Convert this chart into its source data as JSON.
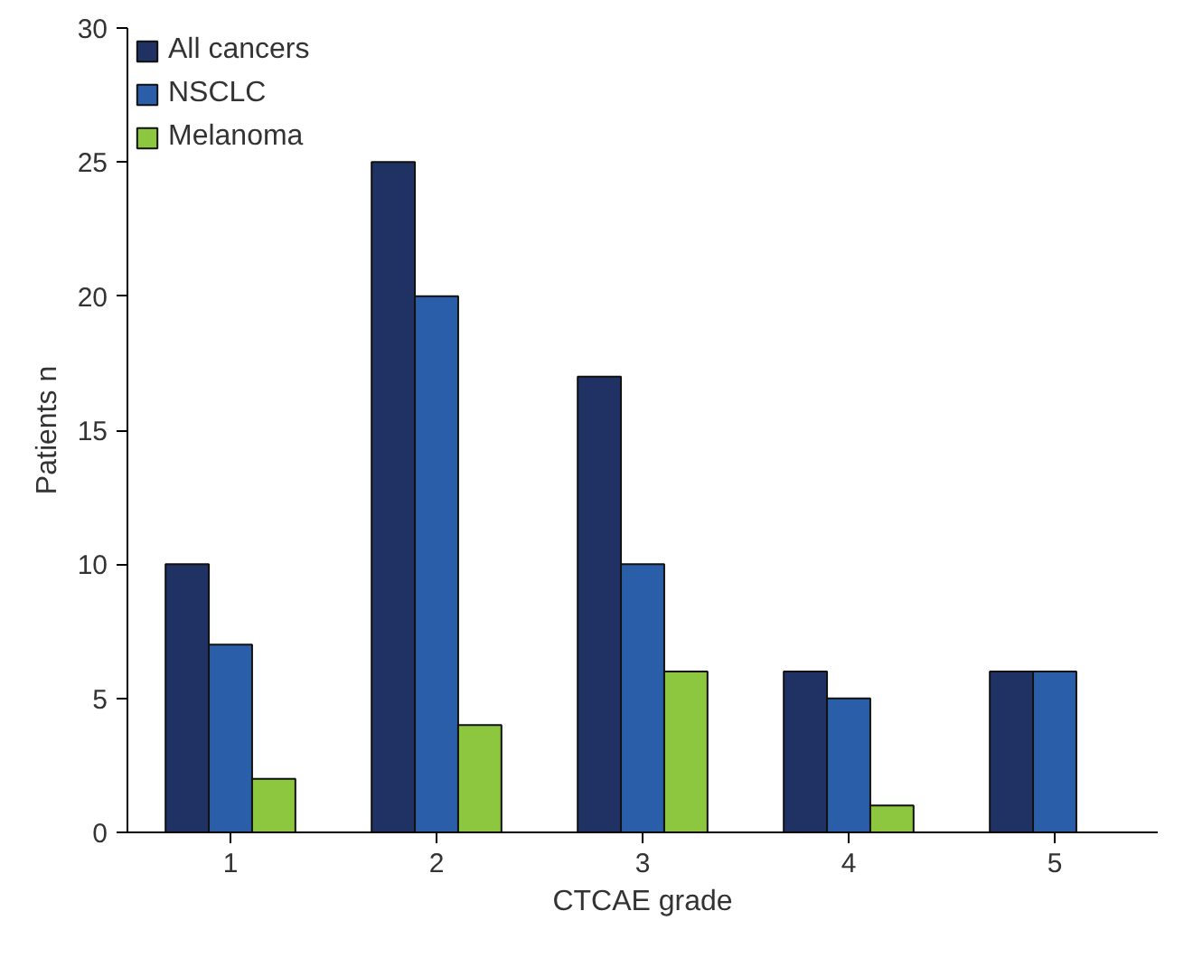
{
  "chart_data": {
    "type": "bar",
    "xlabel": "CTCAE grade",
    "ylabel": "Patients n",
    "categories": [
      "1",
      "2",
      "3",
      "4",
      "5"
    ],
    "series": [
      {
        "name": "All cancers",
        "color": "#1f3263",
        "values": [
          10,
          25,
          17,
          6,
          6
        ]
      },
      {
        "name": "NSCLC",
        "color": "#2b5ea8",
        "values": [
          7,
          20,
          10,
          5,
          6
        ]
      },
      {
        "name": "Melanoma",
        "color": "#8dc63f",
        "values": [
          2,
          4,
          6,
          1,
          null
        ]
      }
    ],
    "ylim": [
      0,
      30
    ],
    "yticks": [
      0,
      5,
      10,
      15,
      20,
      25,
      30
    ],
    "grid": false,
    "legend": "top left"
  }
}
